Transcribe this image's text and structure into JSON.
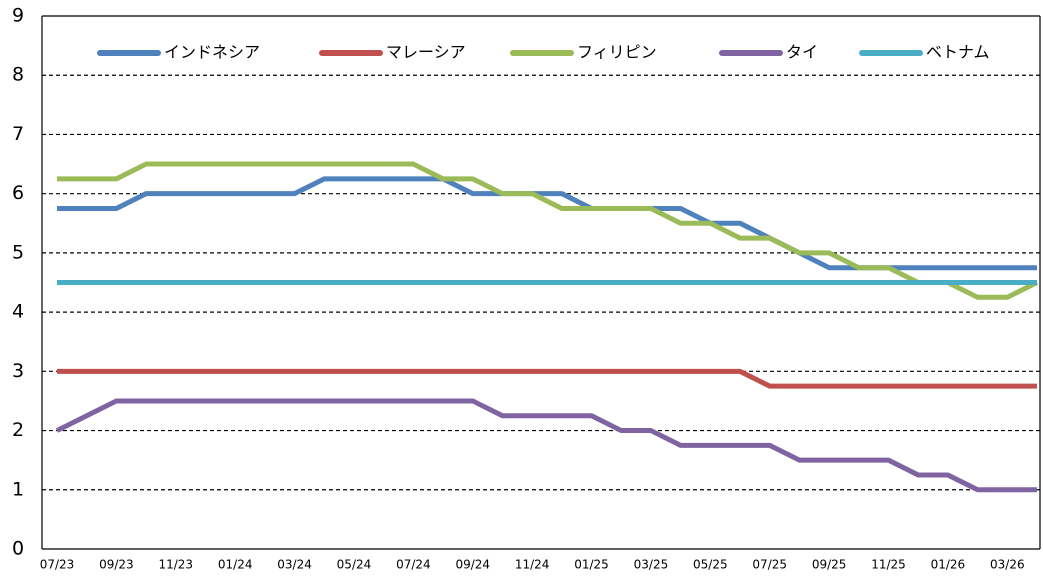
{
  "chart_data": {
    "type": "line",
    "categories": [
      "07/23",
      null,
      "09/23",
      null,
      "11/23",
      null,
      "01/24",
      null,
      "03/24",
      null,
      "05/24",
      null,
      "07/24",
      null,
      "09/24",
      null,
      "11/24",
      null,
      "01/25",
      null,
      "03/25",
      null,
      "05/25",
      null,
      "07/25",
      null,
      "09/25",
      null,
      "11/25",
      null,
      "01/26",
      null,
      "03/26",
      null
    ],
    "series": [
      {
        "name": "インドネシア",
        "color": "#4f81bd",
        "values": [
          5.75,
          5.75,
          5.75,
          6,
          6,
          6,
          6,
          6,
          6,
          6.25,
          6.25,
          6.25,
          6.25,
          6.25,
          6,
          6,
          6,
          6,
          5.75,
          5.75,
          5.75,
          5.75,
          5.5,
          5.5,
          5.25,
          5,
          4.75,
          4.75,
          4.75,
          4.75,
          4.75,
          4.75,
          4.75,
          4.75
        ]
      },
      {
        "name": "マレーシア",
        "color": "#c0504d",
        "values": [
          3,
          3,
          3,
          3,
          3,
          3,
          3,
          3,
          3,
          3,
          3,
          3,
          3,
          3,
          3,
          3,
          3,
          3,
          3,
          3,
          3,
          3,
          3,
          3,
          2.75,
          2.75,
          2.75,
          2.75,
          2.75,
          2.75,
          2.75,
          2.75,
          2.75,
          2.75
        ]
      },
      {
        "name": "フィリピン",
        "color": "#9bbb59",
        "values": [
          6.25,
          6.25,
          6.25,
          6.5,
          6.5,
          6.5,
          6.5,
          6.5,
          6.5,
          6.5,
          6.5,
          6.5,
          6.5,
          6.25,
          6.25,
          6,
          6,
          5.75,
          5.75,
          5.75,
          5.75,
          5.5,
          5.5,
          5.25,
          5.25,
          5,
          5,
          4.75,
          4.75,
          4.5,
          4.5,
          4.25,
          4.25,
          4.5
        ]
      },
      {
        "name": "タイ",
        "color": "#8064a2",
        "values": [
          2,
          2.25,
          2.5,
          2.5,
          2.5,
          2.5,
          2.5,
          2.5,
          2.5,
          2.5,
          2.5,
          2.5,
          2.5,
          2.5,
          2.5,
          2.25,
          2.25,
          2.25,
          2.25,
          2,
          2,
          1.75,
          1.75,
          1.75,
          1.75,
          1.5,
          1.5,
          1.5,
          1.5,
          1.25,
          1.25,
          1,
          1,
          1
        ]
      },
      {
        "name": "ベトナム",
        "color": "#4bacc6",
        "values": [
          4.5,
          4.5,
          4.5,
          4.5,
          4.5,
          4.5,
          4.5,
          4.5,
          4.5,
          4.5,
          4.5,
          4.5,
          4.5,
          4.5,
          4.5,
          4.5,
          4.5,
          4.5,
          4.5,
          4.5,
          4.5,
          4.5,
          4.5,
          4.5,
          4.5,
          4.5,
          4.5,
          4.5,
          4.5,
          4.5,
          4.5,
          4.5,
          4.5,
          4.5
        ]
      }
    ],
    "ylim": [
      0,
      9
    ],
    "yticks": [
      0,
      1,
      2,
      3,
      4,
      5,
      6,
      7,
      8,
      9
    ],
    "grid": true,
    "legend": "top"
  }
}
